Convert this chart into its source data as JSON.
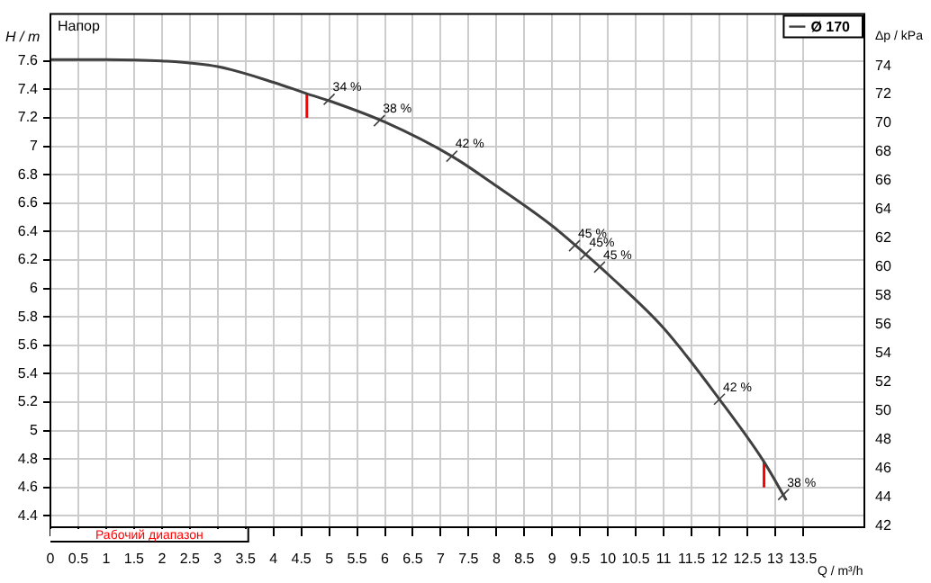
{
  "chart_data": {
    "type": "line",
    "title": "Напор",
    "xlabel": "Q / m³/h",
    "ylabel": "H / m",
    "y2label": "Δp / kPa",
    "xlim": [
      0,
      14.6
    ],
    "xticks": [
      0,
      0.5,
      1,
      1.5,
      2,
      2.5,
      3,
      3.5,
      4,
      4.5,
      5,
      5.5,
      6,
      6.5,
      7,
      7.5,
      8,
      8.5,
      9,
      9.5,
      10,
      10.5,
      11,
      11.5,
      12,
      12.5,
      13,
      13.5
    ],
    "ylim": [
      4.32,
      7.93
    ],
    "yticks": [
      4.4,
      4.6,
      4.8,
      5,
      5.2,
      5.4,
      5.6,
      5.8,
      6,
      6.2,
      6.4,
      6.6,
      6.8,
      7,
      7.2,
      7.4,
      7.6
    ],
    "y2lim": [
      41.9,
      77.6
    ],
    "y2ticks": [
      42,
      44,
      46,
      48,
      50,
      52,
      54,
      56,
      58,
      60,
      62,
      64,
      66,
      68,
      70,
      72,
      74
    ],
    "grid": true,
    "legend": "top right",
    "marker": "none",
    "line_style": "solid",
    "series": [
      {
        "name": "Ø 170",
        "color": "#404040",
        "x": [
          0,
          1,
          2,
          3,
          4,
          4.6,
          5,
          6,
          7.2,
          8,
          9,
          9.6,
          10,
          11,
          12,
          12.8,
          13.2
        ],
        "values": [
          7.61,
          7.61,
          7.6,
          7.56,
          7.45,
          7.37,
          7.32,
          7.17,
          6.93,
          6.72,
          6.44,
          6.24,
          6.1,
          5.72,
          5.22,
          4.78,
          4.51
        ]
      },
      {
        "color": "#ff0000",
        "x": [
          4.6,
          4.6
        ],
        "values": [
          7.37,
          7.2
        ]
      },
      {
        "color": "#ff0000",
        "x": [
          12.8,
          12.8
        ],
        "values": [
          4.78,
          4.6
        ]
      }
    ],
    "annotations": [
      {
        "text": "34 %",
        "x": 5.0,
        "y": 7.33
      },
      {
        "text": "38 %",
        "x": 5.9,
        "y": 7.18
      },
      {
        "text": "42 %",
        "x": 7.2,
        "y": 6.93
      },
      {
        "text": "45 %",
        "x": 9.4,
        "y": 6.3
      },
      {
        "text": "45%",
        "x": 9.6,
        "y": 6.24
      },
      {
        "text": "45 %",
        "x": 9.85,
        "y": 6.15
      },
      {
        "text": "42 %",
        "x": 12.0,
        "y": 5.22
      },
      {
        "text": "38 %",
        "x": 13.15,
        "y": 4.55
      },
      "Рабочий диапазон"
    ]
  }
}
